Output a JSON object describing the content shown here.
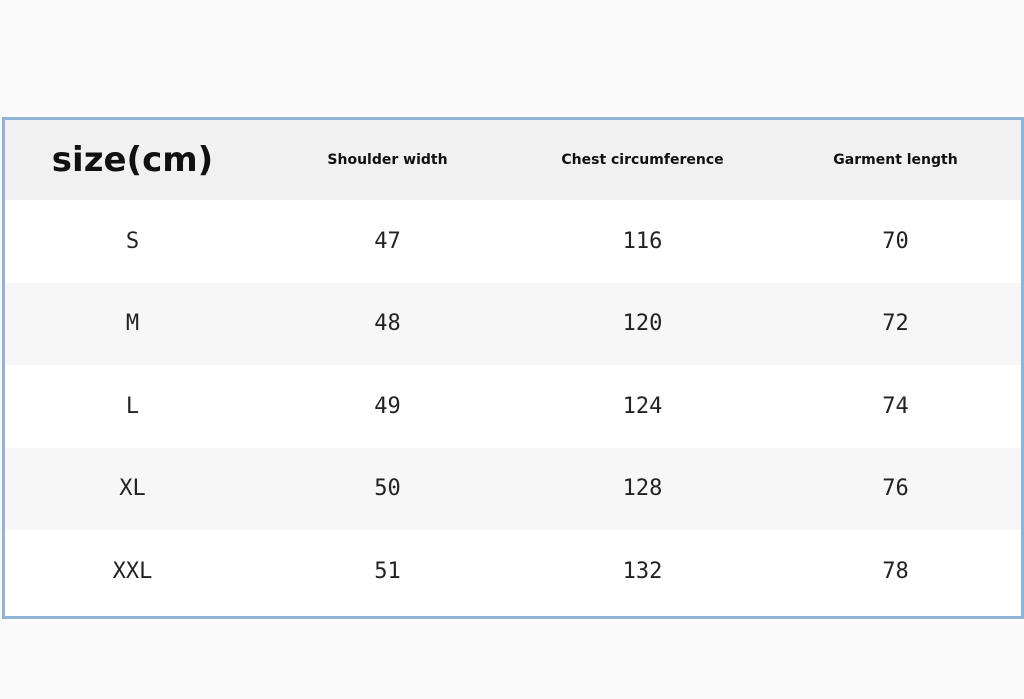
{
  "table": {
    "header": [
      "size(cm)",
      "Shoulder width",
      "Chest circumference",
      "Garment length"
    ],
    "rows": [
      [
        "S",
        "47",
        "116",
        "70"
      ],
      [
        "M",
        "48",
        "120",
        "72"
      ],
      [
        "L",
        "49",
        "124",
        "74"
      ],
      [
        "XL",
        "50",
        "128",
        "76"
      ],
      [
        "XXL",
        "51",
        "132",
        "78"
      ]
    ]
  }
}
